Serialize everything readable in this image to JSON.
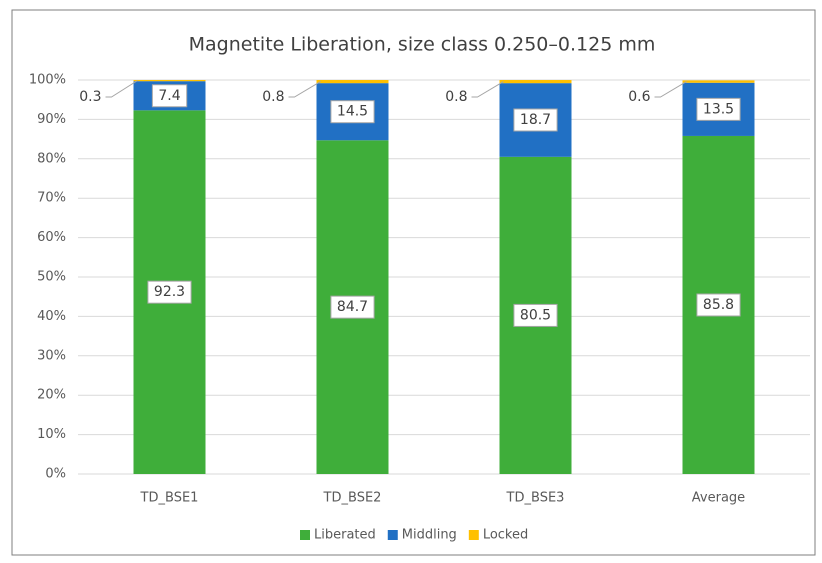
{
  "chart_data": {
    "type": "stacked_bar",
    "title": "Magnetite Liberation, size class 0.250–0.125 mm",
    "categories": [
      "TD_BSE1",
      "TD_BSE2",
      "TD_BSE3",
      "Average"
    ],
    "series": [
      {
        "name": "Liberated",
        "color": "#3fae3a",
        "values": [
          92.3,
          84.7,
          80.5,
          85.8
        ]
      },
      {
        "name": "Middling",
        "color": "#2170c4",
        "values": [
          7.4,
          14.5,
          18.7,
          13.5
        ]
      },
      {
        "name": "Locked",
        "color": "#ffc000",
        "values": [
          0.3,
          0.8,
          0.8,
          0.6
        ]
      }
    ],
    "ylim": [
      0,
      100
    ],
    "yticks": [
      {
        "value": 0,
        "label": "0%"
      },
      {
        "value": 10,
        "label": "10%"
      },
      {
        "value": 20,
        "label": "20%"
      },
      {
        "value": 30,
        "label": "30%"
      },
      {
        "value": 40,
        "label": "40%"
      },
      {
        "value": 50,
        "label": "50%"
      },
      {
        "value": 60,
        "label": "60%"
      },
      {
        "value": 70,
        "label": "70%"
      },
      {
        "value": 80,
        "label": "80%"
      },
      {
        "value": 90,
        "label": "90%"
      },
      {
        "value": 100,
        "label": "100%"
      }
    ],
    "grid": true,
    "legend": "bottom"
  }
}
